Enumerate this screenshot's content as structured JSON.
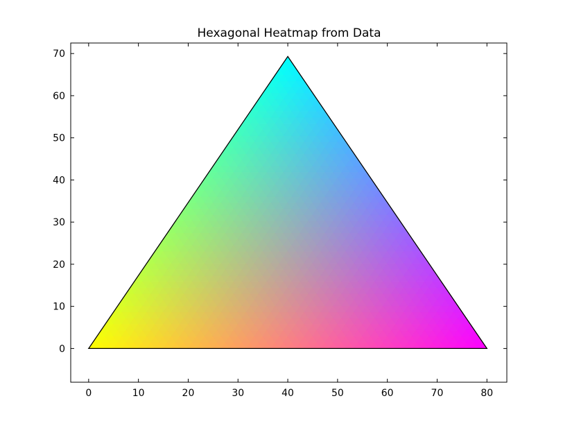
{
  "chart_data": {
    "type": "heatmap",
    "title": "Hexagonal Heatmap from Data",
    "xlabel": "",
    "ylabel": "",
    "xlim": [
      -3.6,
      84
    ],
    "ylim": [
      -8,
      72.5
    ],
    "xticks": [
      0,
      10,
      20,
      30,
      40,
      50,
      60,
      70,
      80
    ],
    "yticks": [
      0,
      10,
      20,
      30,
      40,
      50,
      60,
      70
    ],
    "grid": false,
    "triangle": {
      "vertices": [
        {
          "x": 0,
          "y": 0,
          "color": "#ffff00"
        },
        {
          "x": 80,
          "y": 0,
          "color": "#ff00ff"
        },
        {
          "x": 40,
          "y": 69.3,
          "color": "#00ffff"
        }
      ],
      "edge_color": "#000000"
    }
  }
}
